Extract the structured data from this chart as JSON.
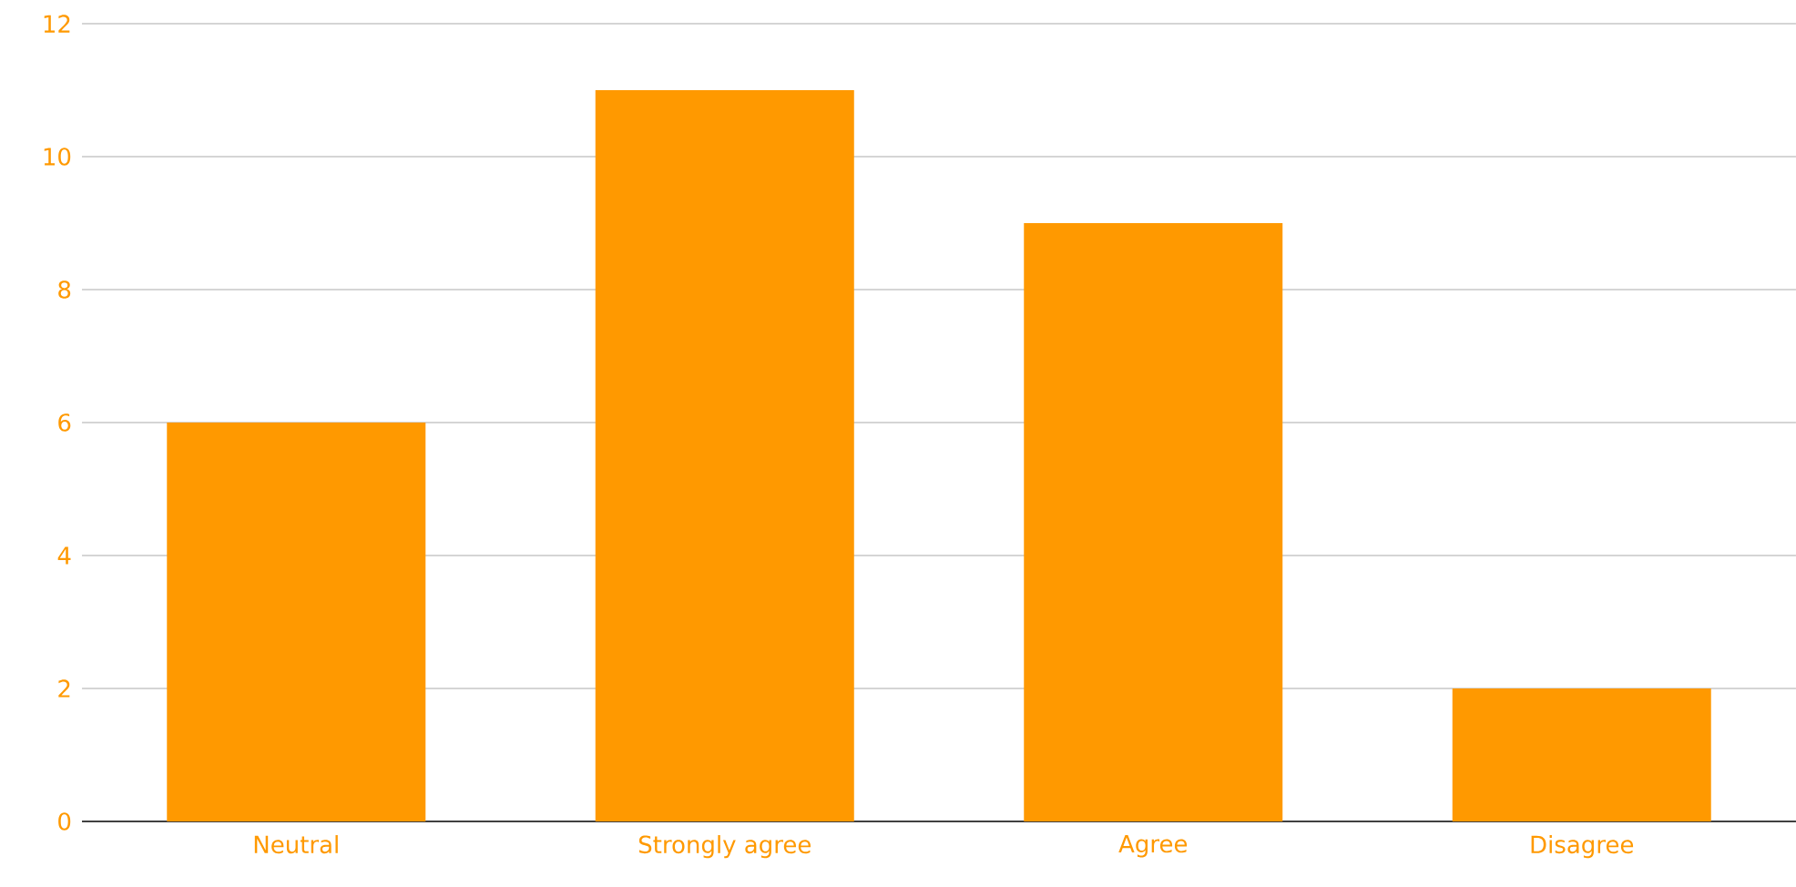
{
  "chart_data": {
    "type": "bar",
    "categories": [
      "Neutral",
      "Strongly agree",
      "Agree",
      "Disagree"
    ],
    "values": [
      6,
      11,
      9,
      2
    ],
    "color": "#ff9900",
    "ylim": [
      0,
      12
    ],
    "yticks": [
      0,
      2,
      4,
      6,
      8,
      10,
      12
    ],
    "grid": "y"
  }
}
